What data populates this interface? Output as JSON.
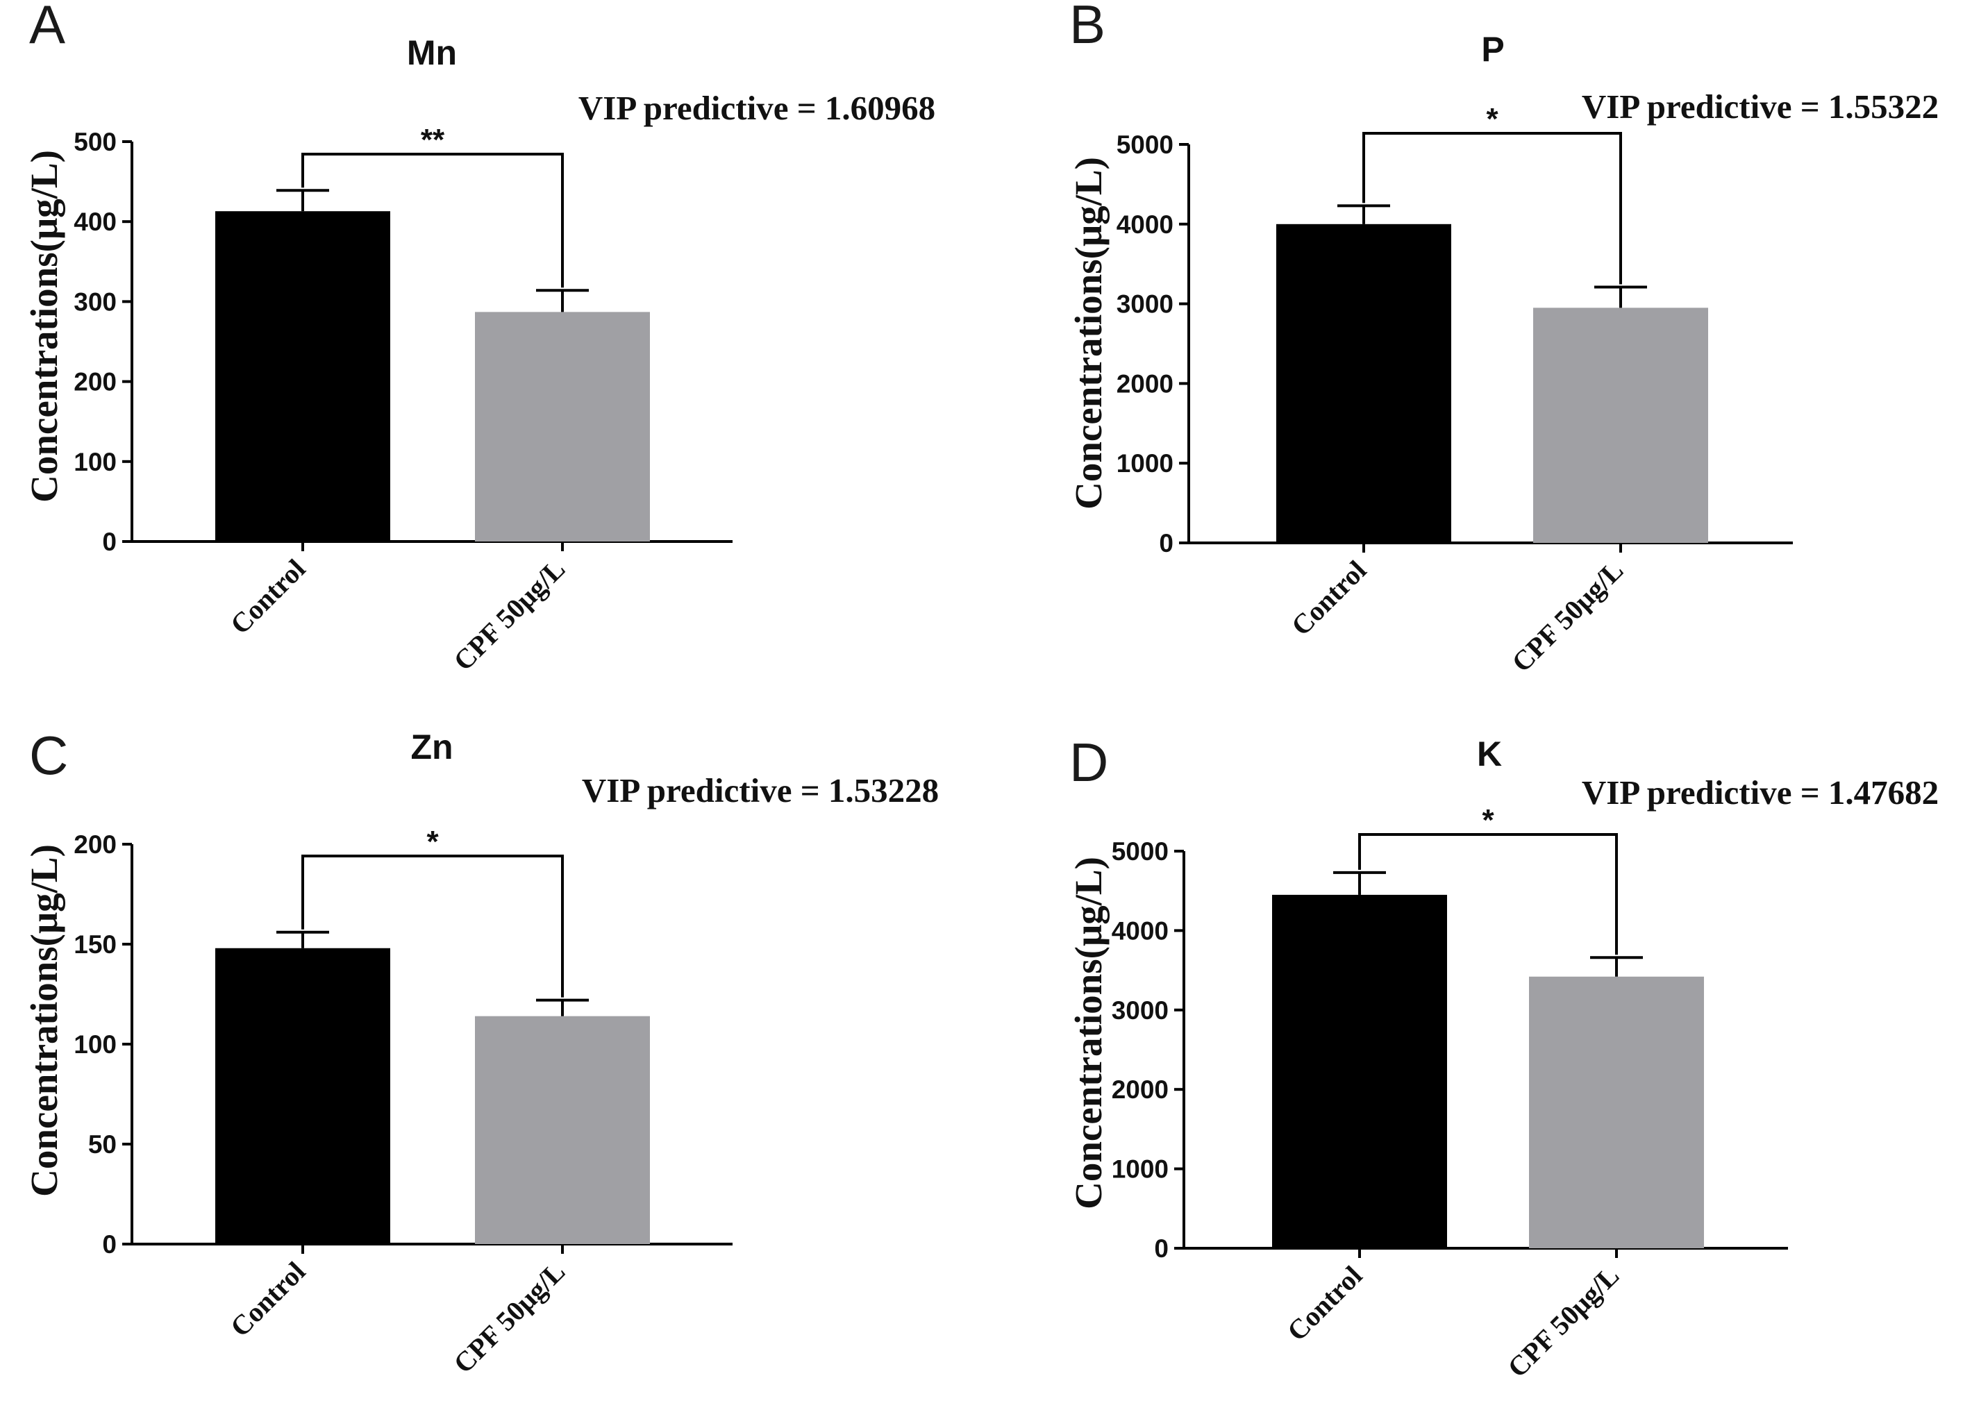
{
  "chart_data": [
    {
      "panel": "A",
      "type": "bar",
      "title": "Mn",
      "annotation": "VIP predictive = 1.60968",
      "ylabel": "Concentrations(μg/L)",
      "xlabel": "",
      "categories": [
        "Control",
        "CPF 50μg/L"
      ],
      "values": [
        413,
        287
      ],
      "errors": [
        26,
        27
      ],
      "colors": [
        "#000000",
        "#a0a0a4"
      ],
      "ylim": [
        0,
        500
      ],
      "yticks": [
        0,
        100,
        200,
        300,
        400,
        500
      ],
      "significance": "**"
    },
    {
      "panel": "B",
      "type": "bar",
      "title": "P",
      "annotation": "VIP predictive = 1.55322",
      "ylabel": "Concentrations(μg/L)",
      "xlabel": "",
      "categories": [
        "Control",
        "CPF 50μg/L"
      ],
      "values": [
        4000,
        2950
      ],
      "errors": [
        230,
        260
      ],
      "colors": [
        "#000000",
        "#a0a0a4"
      ],
      "ylim": [
        0,
        5000
      ],
      "yticks": [
        0,
        1000,
        2000,
        3000,
        4000,
        5000
      ],
      "significance": "*"
    },
    {
      "panel": "C",
      "type": "bar",
      "title": "Zn",
      "annotation": "VIP predictive = 1.53228",
      "ylabel": "Concentrations(μg/L)",
      "xlabel": "",
      "categories": [
        "Control",
        "CPF 50μg/L"
      ],
      "values": [
        148,
        114
      ],
      "errors": [
        8,
        8
      ],
      "colors": [
        "#000000",
        "#a0a0a4"
      ],
      "ylim": [
        0,
        200
      ],
      "yticks": [
        0,
        50,
        100,
        150,
        200
      ],
      "significance": "*"
    },
    {
      "panel": "D",
      "type": "bar",
      "title": "K",
      "annotation": "VIP predictive = 1.47682",
      "ylabel": "Concentrations(μg/L)",
      "xlabel": "",
      "categories": [
        "Control",
        "CPF 50μg/L"
      ],
      "values": [
        4450,
        3420
      ],
      "errors": [
        280,
        240
      ],
      "colors": [
        "#000000",
        "#a0a0a4"
      ],
      "ylim": [
        0,
        5000
      ],
      "yticks": [
        0,
        1000,
        2000,
        3000,
        4000,
        5000
      ],
      "significance": "*"
    }
  ]
}
